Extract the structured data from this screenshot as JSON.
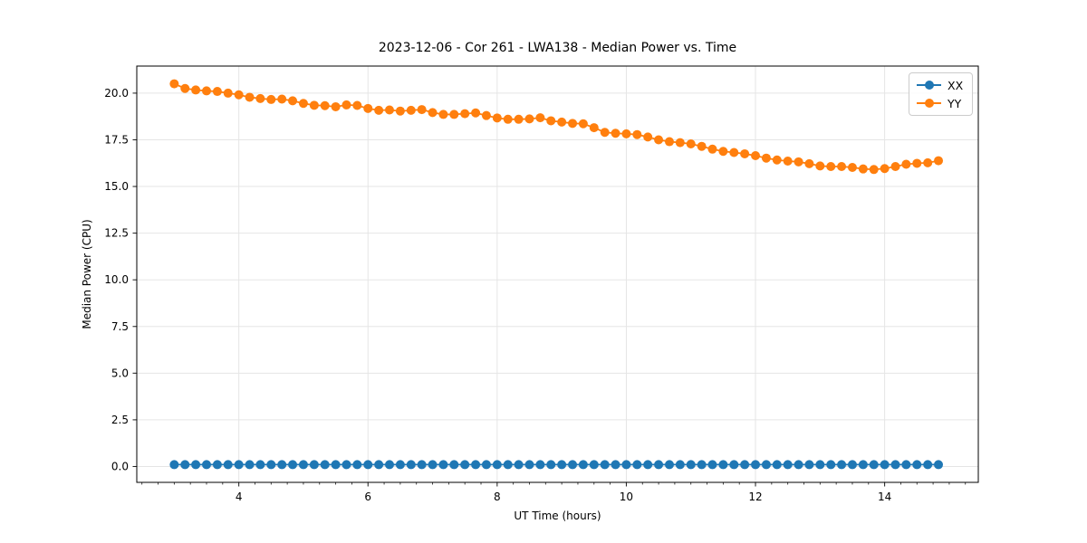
{
  "chart_data": {
    "type": "line",
    "title": "2023-12-06 - Cor 261 - LWA138 - Median Power vs. Time",
    "xlabel": "UT Time (hours)",
    "ylabel": "Median Power (CPU)",
    "xlim": [
      2.42,
      15.45
    ],
    "ylim": [
      -0.85,
      21.45
    ],
    "xticks": [
      4,
      6,
      8,
      10,
      12,
      14
    ],
    "xtick_labels": [
      "4",
      "6",
      "8",
      "10",
      "12",
      "14"
    ],
    "x_minor_step": 0.25,
    "yticks": [
      0.0,
      2.5,
      5.0,
      7.5,
      10.0,
      12.5,
      15.0,
      17.5,
      20.0
    ],
    "ytick_labels": [
      "0.0",
      "2.5",
      "5.0",
      "7.5",
      "10.0",
      "12.5",
      "15.0",
      "17.5",
      "20.0"
    ],
    "grid": true,
    "grid_color": "#e5e5e5",
    "axis_color": "#1a1a1a",
    "legend_position": "upper right",
    "legend_entries": [
      "XX",
      "YY"
    ],
    "x": [
      3.0,
      3.167,
      3.333,
      3.5,
      3.667,
      3.833,
      4.0,
      4.167,
      4.333,
      4.5,
      4.667,
      4.833,
      5.0,
      5.167,
      5.333,
      5.5,
      5.667,
      5.833,
      6.0,
      6.167,
      6.333,
      6.5,
      6.667,
      6.833,
      7.0,
      7.167,
      7.333,
      7.5,
      7.667,
      7.833,
      8.0,
      8.167,
      8.333,
      8.5,
      8.667,
      8.833,
      9.0,
      9.167,
      9.333,
      9.5,
      9.667,
      9.833,
      10.0,
      10.167,
      10.333,
      10.5,
      10.667,
      10.833,
      11.0,
      11.167,
      11.333,
      11.5,
      11.667,
      11.833,
      12.0,
      12.167,
      12.333,
      12.5,
      12.667,
      12.833,
      13.0,
      13.167,
      13.333,
      13.5,
      13.667,
      13.833,
      14.0,
      14.167,
      14.333,
      14.5,
      14.667,
      14.833
    ],
    "series": [
      {
        "name": "XX",
        "color": "#1f77b4",
        "values": [
          0.1,
          0.1,
          0.1,
          0.1,
          0.1,
          0.1,
          0.1,
          0.1,
          0.1,
          0.1,
          0.1,
          0.1,
          0.1,
          0.1,
          0.1,
          0.1,
          0.1,
          0.1,
          0.1,
          0.1,
          0.1,
          0.1,
          0.1,
          0.1,
          0.1,
          0.1,
          0.1,
          0.1,
          0.1,
          0.1,
          0.1,
          0.1,
          0.1,
          0.1,
          0.1,
          0.1,
          0.1,
          0.1,
          0.1,
          0.1,
          0.1,
          0.1,
          0.1,
          0.1,
          0.1,
          0.1,
          0.1,
          0.1,
          0.1,
          0.1,
          0.1,
          0.1,
          0.1,
          0.1,
          0.1,
          0.1,
          0.1,
          0.1,
          0.1,
          0.1,
          0.1,
          0.1,
          0.1,
          0.1,
          0.1,
          0.1,
          0.1,
          0.1,
          0.1,
          0.1,
          0.1,
          0.1
        ]
      },
      {
        "name": "YY",
        "color": "#ff7f0e",
        "values": [
          20.5,
          20.25,
          20.17,
          20.12,
          20.09,
          20.0,
          19.91,
          19.78,
          19.71,
          19.66,
          19.68,
          19.59,
          19.45,
          19.35,
          19.33,
          19.27,
          19.37,
          19.34,
          19.18,
          19.08,
          19.1,
          19.04,
          19.08,
          19.12,
          18.96,
          18.86,
          18.86,
          18.9,
          18.94,
          18.8,
          18.67,
          18.6,
          18.6,
          18.62,
          18.68,
          18.52,
          18.45,
          18.38,
          18.36,
          18.15,
          17.9,
          17.85,
          17.82,
          17.78,
          17.65,
          17.5,
          17.4,
          17.35,
          17.28,
          17.15,
          17.0,
          16.88,
          16.82,
          16.75,
          16.65,
          16.52,
          16.42,
          16.36,
          16.32,
          16.22,
          16.1,
          16.07,
          16.07,
          16.02,
          15.94,
          15.91,
          15.96,
          16.07,
          16.19,
          16.24,
          16.27,
          16.38
        ]
      }
    ]
  }
}
